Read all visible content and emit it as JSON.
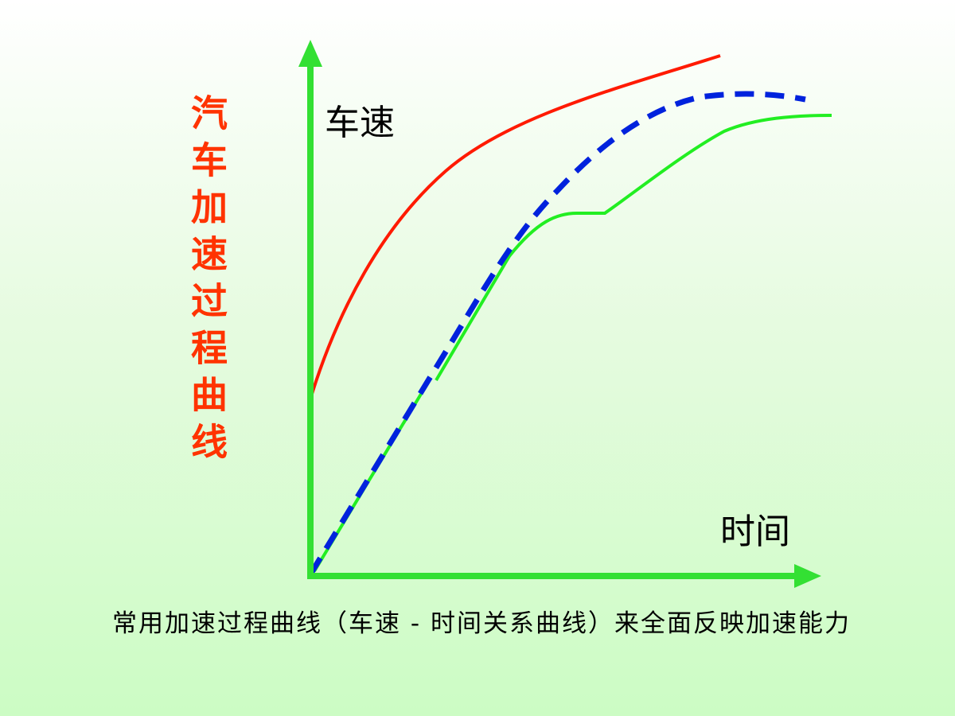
{
  "title": "汽车加速过程曲线",
  "y_axis_label": "车速",
  "x_axis_label": "时间",
  "caption": "常用加速过程曲线（车速 - 时间关系曲线）来全面反映加速能力"
}
